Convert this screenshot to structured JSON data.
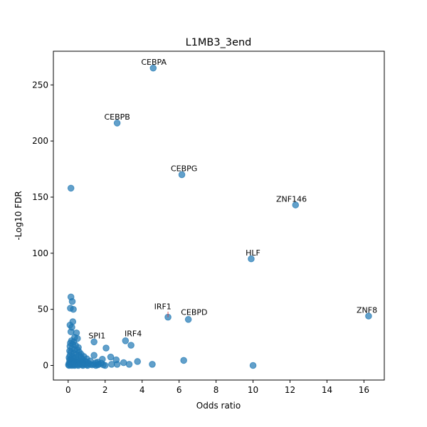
{
  "chart_data": {
    "type": "scatter",
    "title": "L1MB3_3end",
    "xlabel": "Odds ratio",
    "ylabel": "-Log10 FDR",
    "xlim": [
      -0.8,
      17.1
    ],
    "ylim": [
      -13,
      280
    ],
    "xticks": [
      0,
      2,
      4,
      6,
      8,
      10,
      12,
      14,
      16
    ],
    "yticks": [
      0,
      50,
      100,
      150,
      200,
      250
    ],
    "grid": false,
    "color": "#1f77b4",
    "points": [
      [
        4.6,
        265
      ],
      [
        2.65,
        216
      ],
      [
        6.15,
        170
      ],
      [
        0.15,
        158
      ],
      [
        12.3,
        143
      ],
      [
        9.9,
        95
      ],
      [
        16.25,
        44
      ],
      [
        5.4,
        43
      ],
      [
        6.5,
        41
      ],
      [
        0.15,
        61
      ],
      [
        0.22,
        57
      ],
      [
        0.12,
        51
      ],
      [
        0.28,
        50
      ],
      [
        0.25,
        39
      ],
      [
        0.1,
        36
      ],
      [
        0.2,
        34
      ],
      [
        0.15,
        30
      ],
      [
        0.45,
        29
      ],
      [
        0.35,
        25
      ],
      [
        0.5,
        24
      ],
      [
        0.18,
        22
      ],
      [
        0.3,
        21
      ],
      [
        0.12,
        20
      ],
      [
        0.25,
        19
      ],
      [
        0.4,
        18
      ],
      [
        0.1,
        17
      ],
      [
        0.55,
        16
      ],
      [
        0.2,
        15
      ],
      [
        0.35,
        14
      ],
      [
        0.08,
        13
      ],
      [
        0.15,
        12
      ],
      [
        0.3,
        11
      ],
      [
        0.45,
        10
      ],
      [
        0.6,
        9
      ],
      [
        0.1,
        9
      ],
      [
        0.25,
        8
      ],
      [
        0.4,
        7
      ],
      [
        0.7,
        7
      ],
      [
        0.05,
        7
      ],
      [
        0.15,
        6
      ],
      [
        0.3,
        6
      ],
      [
        0.5,
        5
      ],
      [
        0.8,
        5
      ],
      [
        0.08,
        5
      ],
      [
        0.2,
        4
      ],
      [
        0.35,
        4
      ],
      [
        0.6,
        4
      ],
      [
        0.9,
        4
      ],
      [
        0.12,
        3
      ],
      [
        0.28,
        3
      ],
      [
        0.45,
        3
      ],
      [
        0.7,
        3
      ],
      [
        1.0,
        3
      ],
      [
        0.05,
        2
      ],
      [
        0.18,
        2
      ],
      [
        0.32,
        2
      ],
      [
        0.55,
        2
      ],
      [
        0.8,
        2
      ],
      [
        1.1,
        2
      ],
      [
        0.1,
        1
      ],
      [
        0.25,
        1
      ],
      [
        0.4,
        1
      ],
      [
        0.65,
        1
      ],
      [
        0.9,
        1
      ],
      [
        1.2,
        1
      ],
      [
        1.4,
        1
      ],
      [
        0.02,
        0.5
      ],
      [
        0.15,
        0.5
      ],
      [
        0.3,
        0.5
      ],
      [
        0.5,
        0.5
      ],
      [
        0.75,
        0.5
      ],
      [
        1.0,
        0.5
      ],
      [
        1.3,
        0.5
      ],
      [
        1.6,
        0.5
      ],
      [
        0.05,
        0
      ],
      [
        0.2,
        0
      ],
      [
        0.35,
        0
      ],
      [
        0.55,
        0
      ],
      [
        0.8,
        0
      ],
      [
        1.05,
        0
      ],
      [
        1.5,
        0
      ],
      [
        0.6,
        12
      ],
      [
        0.7,
        10
      ],
      [
        0.85,
        8
      ],
      [
        1.0,
        6
      ],
      [
        1.2,
        4
      ],
      [
        1.6,
        3
      ],
      [
        1.8,
        2
      ],
      [
        0.5,
        14
      ],
      [
        1.4,
        21
      ],
      [
        1.4,
        9
      ],
      [
        2.05,
        15.5
      ],
      [
        1.85,
        5.5
      ],
      [
        1.5,
        2.5
      ],
      [
        1.65,
        1
      ],
      [
        1.9,
        0.5
      ],
      [
        2.0,
        0
      ],
      [
        2.3,
        7.5
      ],
      [
        2.6,
        5
      ],
      [
        2.35,
        1
      ],
      [
        2.65,
        1
      ],
      [
        3.1,
        22
      ],
      [
        3.4,
        18
      ],
      [
        3.0,
        2.5
      ],
      [
        3.3,
        1
      ],
      [
        3.75,
        3.5
      ],
      [
        4.55,
        1
      ],
      [
        6.25,
        4.5
      ],
      [
        10.0,
        0
      ]
    ],
    "annotations": [
      {
        "text": "CEBPA",
        "x": 4.6,
        "y": 265,
        "tx": 3.95,
        "ty": 268
      },
      {
        "text": "CEBPB",
        "x": 2.65,
        "y": 216,
        "tx": 1.95,
        "ty": 219
      },
      {
        "text": "CEBPG",
        "x": 6.15,
        "y": 170,
        "tx": 5.55,
        "ty": 173
      },
      {
        "text": "ZNF146",
        "x": 12.3,
        "y": 143,
        "tx": 11.25,
        "ty": 146
      },
      {
        "text": "HLF",
        "x": 9.9,
        "y": 95,
        "tx": 9.6,
        "ty": 98
      },
      {
        "text": "ZNF8",
        "x": 16.25,
        "y": 44,
        "tx": 15.6,
        "ty": 47
      },
      {
        "text": "IRF1",
        "x": 5.4,
        "y": 43,
        "tx": 4.65,
        "ty": 50,
        "arrow": true
      },
      {
        "text": "CEBPD",
        "x": 6.5,
        "y": 41,
        "tx": 6.1,
        "ty": 45
      },
      {
        "text": "SPI1",
        "x": 0.4,
        "y": 25,
        "tx": 1.1,
        "ty": 24
      },
      {
        "text": "IRF4",
        "x": 3.1,
        "y": 22,
        "tx": 3.05,
        "ty": 26
      }
    ]
  }
}
